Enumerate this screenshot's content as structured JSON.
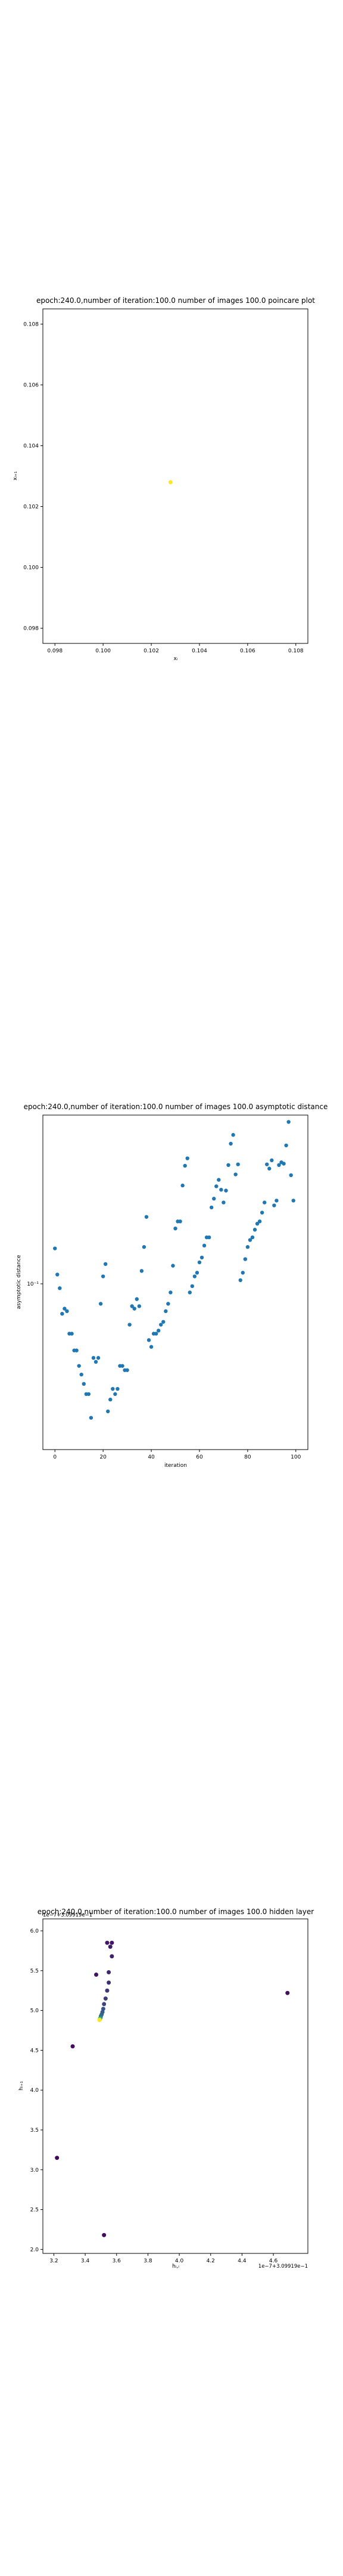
{
  "chart_data": [
    {
      "type": "scatter",
      "title": "epoch:240.0,number of iteration:100.0 number of images 100.0 poincare plot",
      "xlabel": "xᵢ",
      "ylabel": "xᵢ₊₁",
      "xlim": [
        0.0975,
        0.1085
      ],
      "ylim": [
        0.0975,
        0.1085
      ],
      "xticks": [
        0.098,
        0.1,
        0.102,
        0.104,
        0.106,
        0.108
      ],
      "xtick_labels": [
        "0.098",
        "0.100",
        "0.102",
        "0.104",
        "0.106",
        "0.108"
      ],
      "yticks": [
        0.098,
        0.1,
        0.102,
        0.104,
        0.106,
        0.108
      ],
      "ytick_labels": [
        "0.098",
        "0.100",
        "0.102",
        "0.104",
        "0.106",
        "0.108"
      ],
      "points": [
        {
          "x": 0.1028,
          "y": 0.1028
        }
      ],
      "point_color": "#fde725",
      "grid": false
    },
    {
      "type": "scatter",
      "title": "epoch:240.0,number of iteration:100.0  number of images 100.0 asymptotic distance",
      "xlabel": "iteration",
      "ylabel": "asymptotic distance",
      "xlim": [
        -5,
        105
      ],
      "yscale": "log",
      "ylim": [
        0.0128,
        0.253
      ],
      "xticks": [
        0,
        20,
        40,
        60,
        80,
        100
      ],
      "xtick_labels": [
        "0",
        "20",
        "40",
        "60",
        "80",
        "100"
      ],
      "ytick_label": "10⁻¹",
      "ytick_value": 0.1,
      "point_color": "#1f77b4",
      "x": [
        0,
        1,
        2,
        3,
        4,
        5,
        6,
        7,
        8,
        9,
        10,
        11,
        12,
        13,
        14,
        15,
        16,
        17,
        18,
        19,
        20,
        21,
        22,
        23,
        24,
        25,
        26,
        27,
        28,
        29,
        30,
        31,
        32,
        33,
        34,
        35,
        36,
        37,
        38,
        39,
        40,
        41,
        42,
        43,
        44,
        45,
        46,
        47,
        48,
        49,
        50,
        51,
        52,
        53,
        54,
        55,
        56,
        57,
        58,
        59,
        60,
        61,
        62,
        63,
        64,
        65,
        66,
        67,
        68,
        69,
        70,
        71,
        72,
        73,
        74,
        75,
        76,
        77,
        78,
        79,
        80,
        81,
        82,
        83,
        84,
        85,
        86,
        87,
        88,
        89,
        90,
        91,
        92,
        93,
        94,
        95,
        96,
        97,
        98,
        99
      ],
      "y": [
        0.077,
        0.061,
        0.054,
        0.043,
        0.045,
        0.044,
        0.036,
        0.036,
        0.031,
        0.031,
        0.027,
        0.025,
        0.023,
        0.021,
        0.021,
        0.017,
        0.029,
        0.028,
        0.029,
        0.047,
        0.06,
        0.067,
        0.018,
        0.02,
        0.022,
        0.021,
        0.022,
        0.027,
        0.027,
        0.026,
        0.026,
        0.039,
        0.046,
        0.045,
        0.049,
        0.046,
        0.063,
        0.078,
        0.102,
        0.034,
        0.032,
        0.036,
        0.036,
        0.037,
        0.039,
        0.04,
        0.044,
        0.047,
        0.052,
        0.066,
        0.092,
        0.098,
        0.098,
        0.135,
        0.161,
        0.172,
        0.052,
        0.055,
        0.06,
        0.062,
        0.068,
        0.071,
        0.079,
        0.085,
        0.085,
        0.111,
        0.12,
        0.134,
        0.142,
        0.13,
        0.116,
        0.129,
        0.162,
        0.196,
        0.212,
        0.149,
        0.163,
        0.058,
        0.062,
        0.07,
        0.078,
        0.083,
        0.085,
        0.091,
        0.096,
        0.098,
        0.106,
        0.116,
        0.163,
        0.157,
        0.169,
        0.113,
        0.118,
        0.162,
        0.166,
        0.164,
        0.193,
        0.238,
        0.148,
        0.118
      ]
    },
    {
      "type": "scatter",
      "title": "epoch:240.0,number of iteration:100.0  number of images 100.0 hidden layer",
      "xlabel": "hᵢ,ᵢ",
      "ylabel": "hᵢ₊₁",
      "x_offset_label": "1e−7+3.09919e−1",
      "y_offset_label": "1e−7+3.09919e−1",
      "xlim": [
        3.13,
        4.82
      ],
      "ylim": [
        1.95,
        6.15
      ],
      "xticks": [
        3.2,
        3.4,
        3.6,
        3.8,
        4.0,
        4.2,
        4.4,
        4.6
      ],
      "xtick_labels": [
        "3.2",
        "3.4",
        "3.6",
        "3.8",
        "4.0",
        "4.2",
        "4.4",
        "4.6"
      ],
      "yticks": [
        2.0,
        2.5,
        3.0,
        3.5,
        4.0,
        4.5,
        5.0,
        5.5,
        6.0
      ],
      "ytick_labels": [
        "2.0",
        "2.5",
        "3.0",
        "3.5",
        "4.0",
        "4.5",
        "5.0",
        "5.5",
        "6.0"
      ],
      "colormap": "viridis",
      "points": [
        {
          "x": 3.22,
          "y": 3.15,
          "c": 0.02
        },
        {
          "x": 3.32,
          "y": 4.55,
          "c": 0.04
        },
        {
          "x": 3.52,
          "y": 2.18,
          "c": 0.03
        },
        {
          "x": 3.47,
          "y": 5.45,
          "c": 0.05
        },
        {
          "x": 4.69,
          "y": 5.22,
          "c": 0.04
        },
        {
          "x": 3.54,
          "y": 5.85,
          "c": 0.07
        },
        {
          "x": 3.56,
          "y": 5.8,
          "c": 0.08
        },
        {
          "x": 3.57,
          "y": 5.85,
          "c": 0.06
        },
        {
          "x": 3.57,
          "y": 5.68,
          "c": 0.1
        },
        {
          "x": 3.55,
          "y": 5.48,
          "c": 0.12
        },
        {
          "x": 3.55,
          "y": 5.35,
          "c": 0.14
        },
        {
          "x": 3.54,
          "y": 5.25,
          "c": 0.16
        },
        {
          "x": 3.53,
          "y": 5.15,
          "c": 0.18
        },
        {
          "x": 3.52,
          "y": 5.08,
          "c": 0.2
        },
        {
          "x": 3.515,
          "y": 5.02,
          "c": 0.24
        },
        {
          "x": 3.51,
          "y": 4.98,
          "c": 0.28
        },
        {
          "x": 3.505,
          "y": 4.95,
          "c": 0.32
        },
        {
          "x": 3.5,
          "y": 4.93,
          "c": 0.36
        },
        {
          "x": 3.498,
          "y": 4.91,
          "c": 0.42
        },
        {
          "x": 3.495,
          "y": 4.9,
          "c": 0.55
        },
        {
          "x": 3.493,
          "y": 4.89,
          "c": 0.7
        },
        {
          "x": 3.492,
          "y": 4.885,
          "c": 0.85
        },
        {
          "x": 3.491,
          "y": 4.88,
          "c": 1.0
        }
      ],
      "grid": false
    }
  ]
}
